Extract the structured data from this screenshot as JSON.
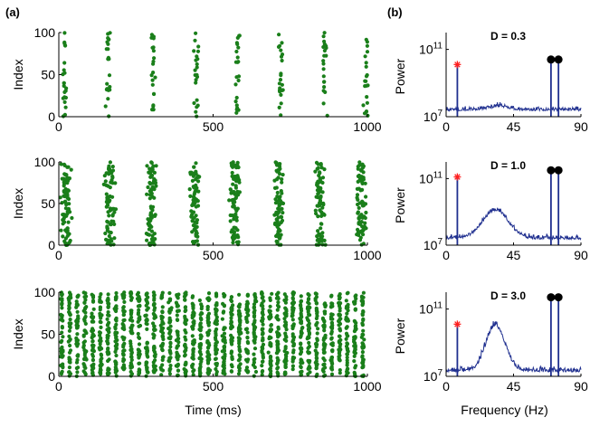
{
  "panel_labels": {
    "a": "(a)",
    "b": "(b)"
  },
  "colors": {
    "raster": "#1a7f1a",
    "spectrum": "#1f2f8f",
    "marker_red": "#ff2020",
    "marker_black": "#000000",
    "axis": "#000000"
  },
  "chart_data": [
    {
      "type": "scatter",
      "panel": "a1",
      "ylabel": "Index",
      "xlabel": "",
      "xlim": [
        0,
        1000
      ],
      "ylim": [
        0,
        100
      ],
      "xticks": [
        "0",
        "500",
        "1000"
      ],
      "yticks": [
        "0",
        "50",
        "100"
      ],
      "burst_times": [
        18,
        160,
        305,
        445,
        580,
        720,
        860,
        995
      ],
      "burst_width": 22,
      "points_per_burst": 22
    },
    {
      "type": "scatter",
      "panel": "a2",
      "ylabel": "Index",
      "xlabel": "",
      "xlim": [
        0,
        1000
      ],
      "ylim": [
        0,
        100
      ],
      "xticks": [
        "0",
        "500",
        "1000"
      ],
      "yticks": [
        "0",
        "50",
        "100"
      ],
      "burst_times": [
        25,
        165,
        300,
        440,
        570,
        710,
        845,
        980
      ],
      "burst_width": 45,
      "points_per_burst": 80
    },
    {
      "type": "scatter",
      "panel": "a3",
      "ylabel": "Index",
      "xlabel": "Time (ms)",
      "xlim": [
        0,
        1000
      ],
      "ylim": [
        0,
        100
      ],
      "xticks": [
        "0",
        "500",
        "1000"
      ],
      "yticks": [
        "0",
        "50",
        "100"
      ],
      "burst_times": [
        10,
        35,
        60,
        85,
        110,
        135,
        160,
        185,
        210,
        235,
        260,
        285,
        310,
        335,
        360,
        385,
        410,
        435,
        460,
        485,
        510,
        535,
        560,
        585,
        610,
        635,
        660,
        685,
        710,
        735,
        760,
        785,
        810,
        835,
        860,
        885,
        910,
        935,
        960,
        985
      ],
      "burst_width": 12,
      "points_per_burst": 45
    },
    {
      "type": "line",
      "panel": "b1",
      "title": "D = 0.3",
      "ylabel": "Power",
      "xlabel": "",
      "xlim": [
        0,
        90
      ],
      "ylog": true,
      "ylim_exp": [
        7,
        12
      ],
      "xticks": [
        "0",
        "45",
        "90"
      ],
      "yticks": [
        "10^7",
        "10^11"
      ],
      "baseline_exp": 7.6,
      "hump": {
        "center": 35,
        "width": 10,
        "height": 0.2
      },
      "noise": 0.35,
      "peaks": [
        {
          "x": 7.5,
          "exp": 10.1
        },
        {
          "x": 70,
          "exp": 10.3
        },
        {
          "x": 75,
          "exp": 10.3
        }
      ],
      "markers": [
        {
          "x": 7.5,
          "exp": 10.1,
          "shape": "star"
        },
        {
          "x": 70,
          "exp": 10.4,
          "shape": "dot"
        },
        {
          "x": 75,
          "exp": 10.4,
          "shape": "dot"
        }
      ]
    },
    {
      "type": "line",
      "panel": "b2",
      "title": "D = 1.0",
      "ylabel": "Power",
      "xlabel": "",
      "xlim": [
        0,
        90
      ],
      "ylog": true,
      "ylim_exp": [
        7,
        12
      ],
      "xticks": [
        "0",
        "45",
        "90"
      ],
      "yticks": [
        "10^7",
        "10^11"
      ],
      "baseline_exp": 7.6,
      "hump": {
        "center": 33,
        "width": 12,
        "height": 1.7
      },
      "noise": 0.4,
      "peaks": [
        {
          "x": 7.5,
          "exp": 11.1
        },
        {
          "x": 70,
          "exp": 11.4
        },
        {
          "x": 75,
          "exp": 11.4
        }
      ],
      "markers": [
        {
          "x": 7.5,
          "exp": 11.1,
          "shape": "star"
        },
        {
          "x": 70,
          "exp": 11.5,
          "shape": "dot"
        },
        {
          "x": 75,
          "exp": 11.5,
          "shape": "dot"
        }
      ]
    },
    {
      "type": "line",
      "panel": "b3",
      "title": "D = 3.0",
      "ylabel": "Power",
      "xlabel": "Frequency (Hz)",
      "xlim": [
        0,
        90
      ],
      "ylog": true,
      "ylim_exp": [
        7,
        12
      ],
      "xticks": [
        "0",
        "45",
        "90"
      ],
      "yticks": [
        "10^7",
        "10^11"
      ],
      "baseline_exp": 7.5,
      "hump": {
        "center": 33,
        "width": 9,
        "height": 2.7
      },
      "noise": 0.45,
      "peaks": [
        {
          "x": 7.5,
          "exp": 10.0
        },
        {
          "x": 70,
          "exp": 11.6
        },
        {
          "x": 75,
          "exp": 11.6
        }
      ],
      "markers": [
        {
          "x": 7.5,
          "exp": 10.1,
          "shape": "star"
        },
        {
          "x": 70,
          "exp": 11.7,
          "shape": "dot"
        },
        {
          "x": 75,
          "exp": 11.7,
          "shape": "dot"
        }
      ]
    }
  ]
}
